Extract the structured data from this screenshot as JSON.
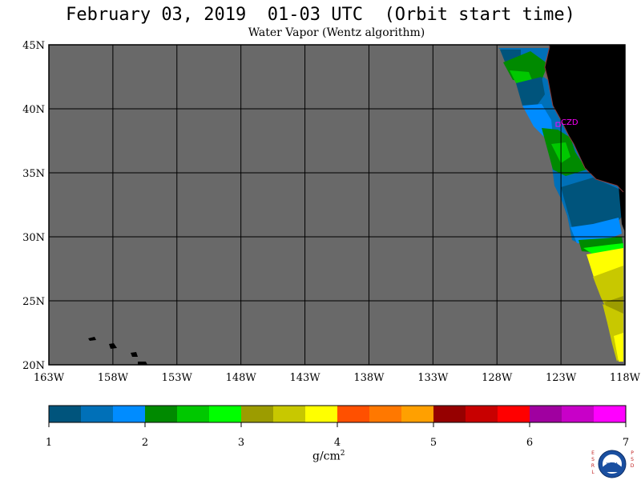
{
  "title": "February 03, 2019  01-03 UTC  (Orbit start time)",
  "subtitle": "Water Vapor (Wentz algorithm)",
  "map": {
    "lat_labels": [
      "45N",
      "40N",
      "35N",
      "30N",
      "25N",
      "20N"
    ],
    "lon_labels": [
      "163W",
      "158W",
      "153W",
      "148W",
      "143W",
      "138W",
      "133W",
      "128W",
      "123W",
      "118W"
    ],
    "station_label": "CZD",
    "colors": {
      "no_data": "#696969",
      "land": "#000000",
      "station": "#ff00ff"
    }
  },
  "colorbar": {
    "unit_text": "g/cm",
    "unit_sup": "2",
    "tick_labels": [
      "1",
      "2",
      "3",
      "4",
      "5",
      "6",
      "7"
    ],
    "colors": [
      "#00547c",
      "#0070b8",
      "#008cff",
      "#008a00",
      "#00c800",
      "#00ff00",
      "#9c9c00",
      "#c8c800",
      "#ffff00",
      "#ff5000",
      "#ff7800",
      "#ffa000",
      "#960000",
      "#c80000",
      "#ff0000",
      "#a000a0",
      "#c800c8",
      "#ff00ff"
    ]
  },
  "logo": {
    "left_text": "ESRL",
    "right_text": "PSD",
    "center_text": "NOAA"
  }
}
